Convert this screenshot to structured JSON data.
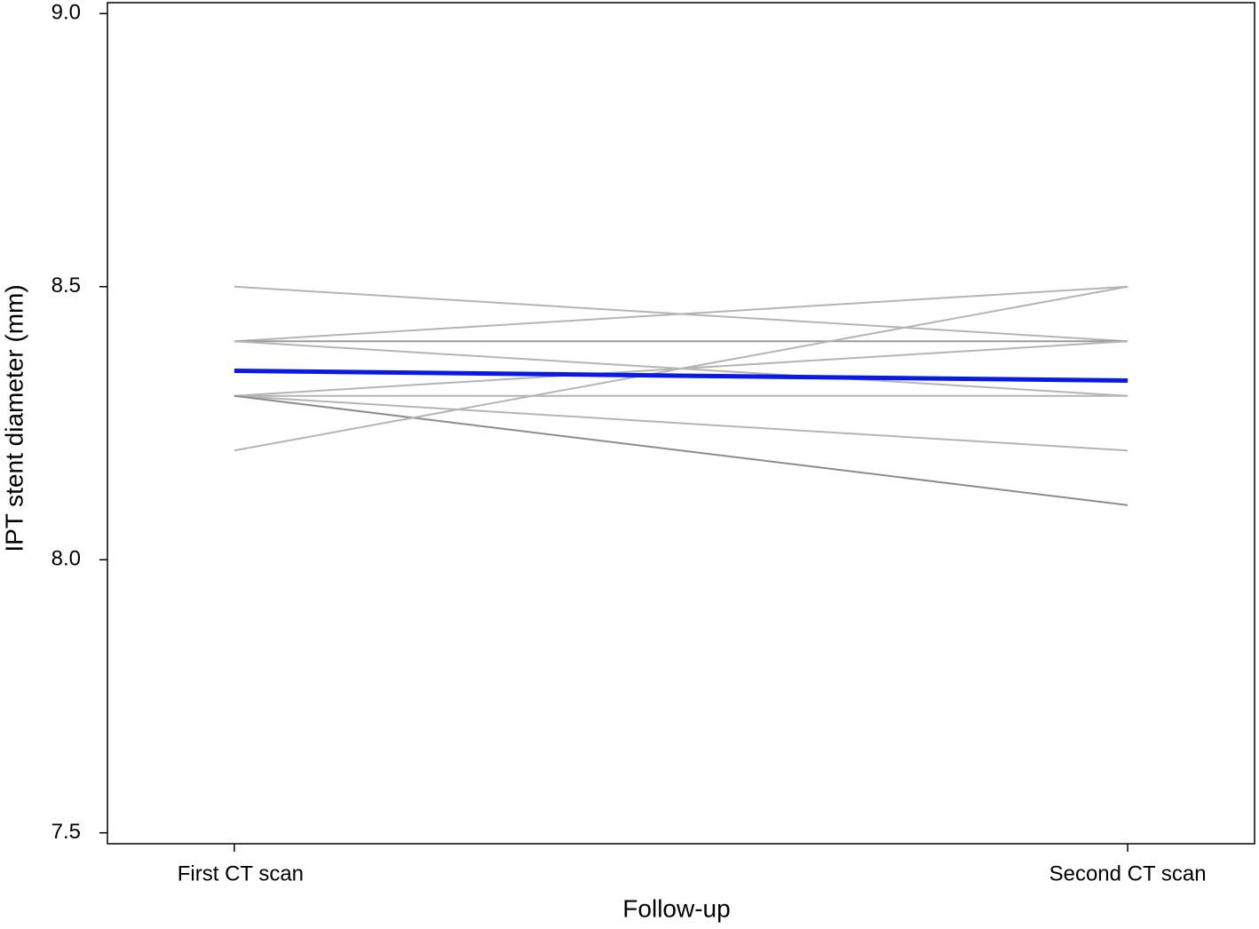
{
  "chart_data": {
    "type": "line",
    "x_label": "Follow-up",
    "y_label": "IPT stent diameter (mm)",
    "categories": [
      "First CT scan",
      "Second CT scan"
    ],
    "series": [
      {
        "color": "#b4b4b4",
        "values": [
          8.5,
          8.4
        ]
      },
      {
        "color": "#b4b4b4",
        "values": [
          8.4,
          8.5
        ]
      },
      {
        "color": "#9a9a9a",
        "values": [
          8.4,
          8.4
        ]
      },
      {
        "color": "#b4b4b4",
        "values": [
          8.4,
          8.3
        ]
      },
      {
        "color": "#b4b4b4",
        "values": [
          8.3,
          8.4
        ]
      },
      {
        "color": "#b4b4b4",
        "values": [
          8.3,
          8.3
        ]
      },
      {
        "color": "#b4b4b4",
        "values": [
          8.3,
          8.2
        ]
      },
      {
        "color": "#8c8c8c",
        "values": [
          8.3,
          8.1
        ]
      },
      {
        "color": "#b4b4b4",
        "values": [
          8.2,
          8.5
        ]
      },
      {
        "color": "#0a1ae6",
        "values": [
          8.346,
          8.328
        ]
      }
    ],
    "ylim": [
      7.48,
      9.02
    ],
    "yticks": [
      {
        "value": 7.5,
        "label": "7.5"
      },
      {
        "value": 8,
        "label": "8.0"
      },
      {
        "value": 8.5,
        "label": "8.5"
      },
      {
        "value": 9,
        "label": "9.0"
      }
    ]
  }
}
